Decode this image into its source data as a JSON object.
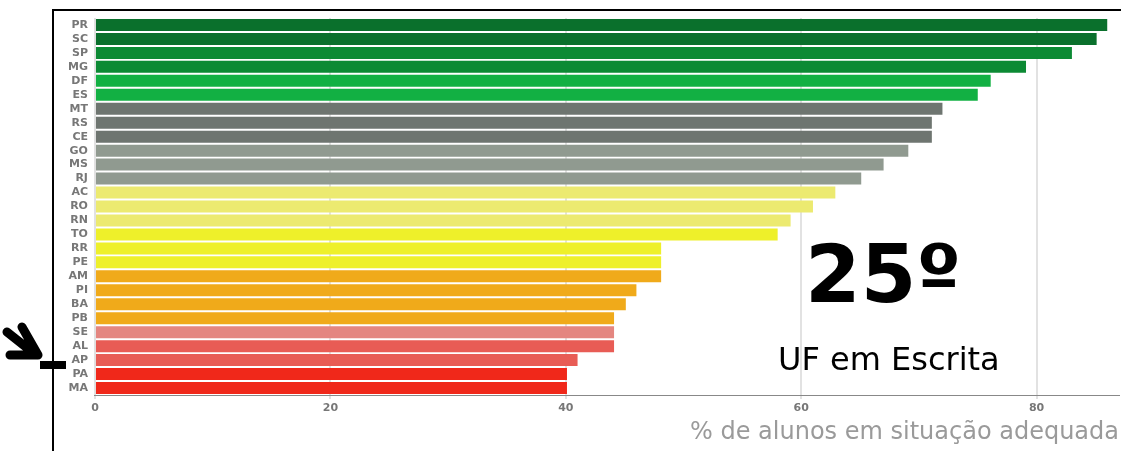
{
  "chart_data": {
    "type": "bar",
    "orientation": "horizontal",
    "xlabel": "% de alunos em situação adequada",
    "categories": [
      "PR",
      "SC",
      "SP",
      "MG",
      "DF",
      "ES",
      "MT",
      "RS",
      "CE",
      "GO",
      "MS",
      "RJ",
      "AC",
      "RO",
      "RN",
      "TO",
      "RR",
      "PE",
      "AM",
      "PI",
      "BA",
      "PB",
      "SE",
      "AL",
      "AP",
      "PA",
      "MA"
    ],
    "values": [
      86,
      85.1,
      83,
      79.1,
      76.1,
      75,
      72,
      71.1,
      71.1,
      69.1,
      67,
      65.1,
      62.9,
      61,
      59.1,
      58,
      48.1,
      48.1,
      48.1,
      46,
      45.1,
      44.1,
      44.1,
      44.1,
      41,
      40.1,
      40.1
    ],
    "colors": [
      "#0a702c",
      "#0a702c",
      "#0c8a34",
      "#0c8a34",
      "#12b043",
      "#12b043",
      "#6e7570",
      "#6e7570",
      "#6e7570",
      "#909a90",
      "#909a90",
      "#909a90",
      "#ecea70",
      "#ecea70",
      "#ecea70",
      "#eef02a",
      "#eef02a",
      "#eef02a",
      "#f0aa1a",
      "#f0aa1a",
      "#f0aa1a",
      "#f0aa1a",
      "#e48680",
      "#e85c55",
      "#e85c55",
      "#f0281a",
      "#f0281a"
    ],
    "xlim": [
      0,
      87
    ],
    "xticks": [
      0,
      20,
      40,
      60,
      80
    ],
    "grid": "x",
    "legend": false,
    "annotations": [
      "25º",
      "UF em Escrita"
    ]
  }
}
